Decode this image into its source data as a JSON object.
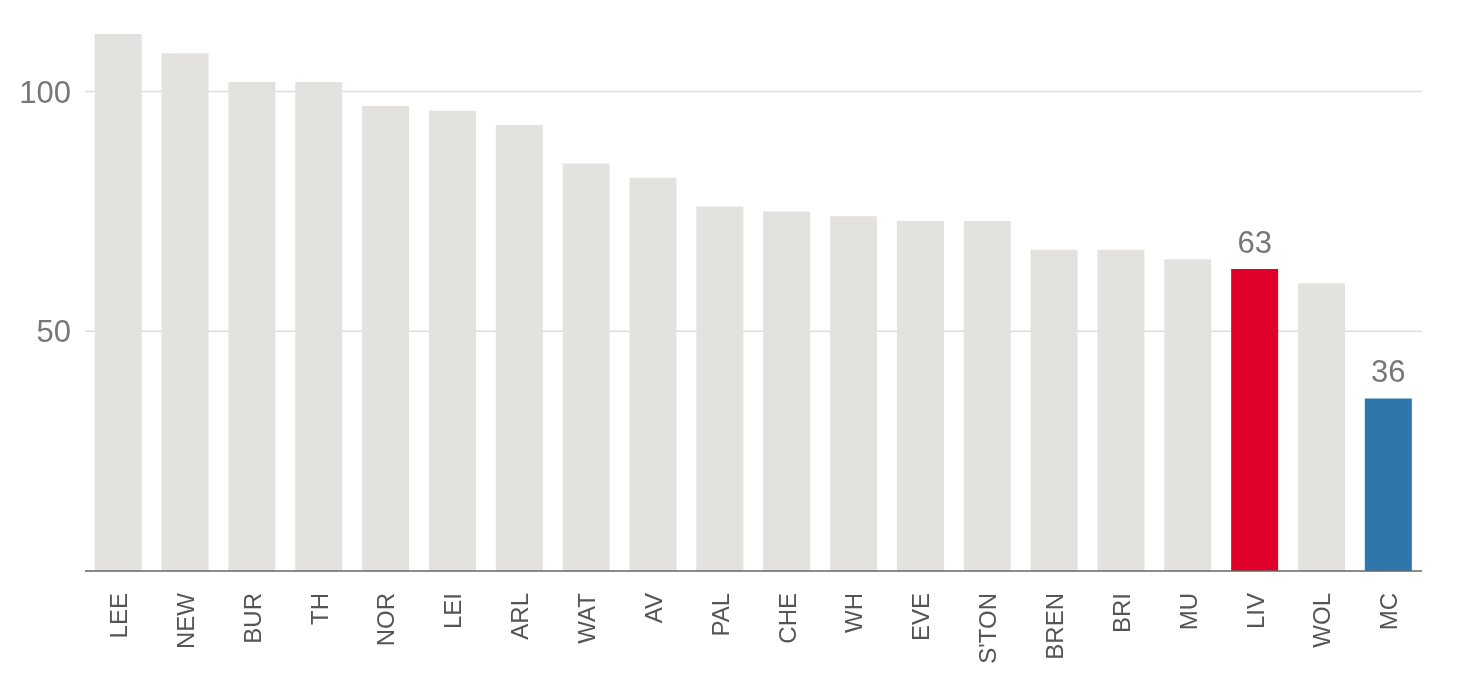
{
  "chart_data": {
    "type": "bar",
    "categories": [
      "LEE",
      "NEW",
      "BUR",
      "TH",
      "NOR",
      "LEI",
      "ARL",
      "WAT",
      "AV",
      "PAL",
      "CHE",
      "WH",
      "EVE",
      "S'TON",
      "BREN",
      "BRI",
      "MU",
      "LIV",
      "WOL",
      "MC"
    ],
    "values": [
      112,
      108,
      102,
      102,
      97,
      96,
      93,
      85,
      82,
      76,
      75,
      74,
      73,
      73,
      67,
      67,
      65,
      63,
      60,
      36
    ],
    "colors": [
      "#e3e2df",
      "#e3e2df",
      "#e3e2df",
      "#e3e2df",
      "#e3e2df",
      "#e3e2df",
      "#e3e2df",
      "#e3e2df",
      "#e3e2df",
      "#e3e2df",
      "#e3e2df",
      "#e3e2df",
      "#e3e2df",
      "#e3e2df",
      "#e3e2df",
      "#e3e2df",
      "#e3e2df",
      "#e0002a",
      "#e3e2df",
      "#2e77ad"
    ],
    "value_labels": [
      null,
      null,
      null,
      null,
      null,
      null,
      null,
      null,
      null,
      null,
      null,
      null,
      null,
      null,
      null,
      null,
      null,
      "63",
      null,
      "36"
    ],
    "ylim": [
      0,
      112
    ],
    "yticks": [
      50,
      100
    ],
    "grid": "y"
  }
}
